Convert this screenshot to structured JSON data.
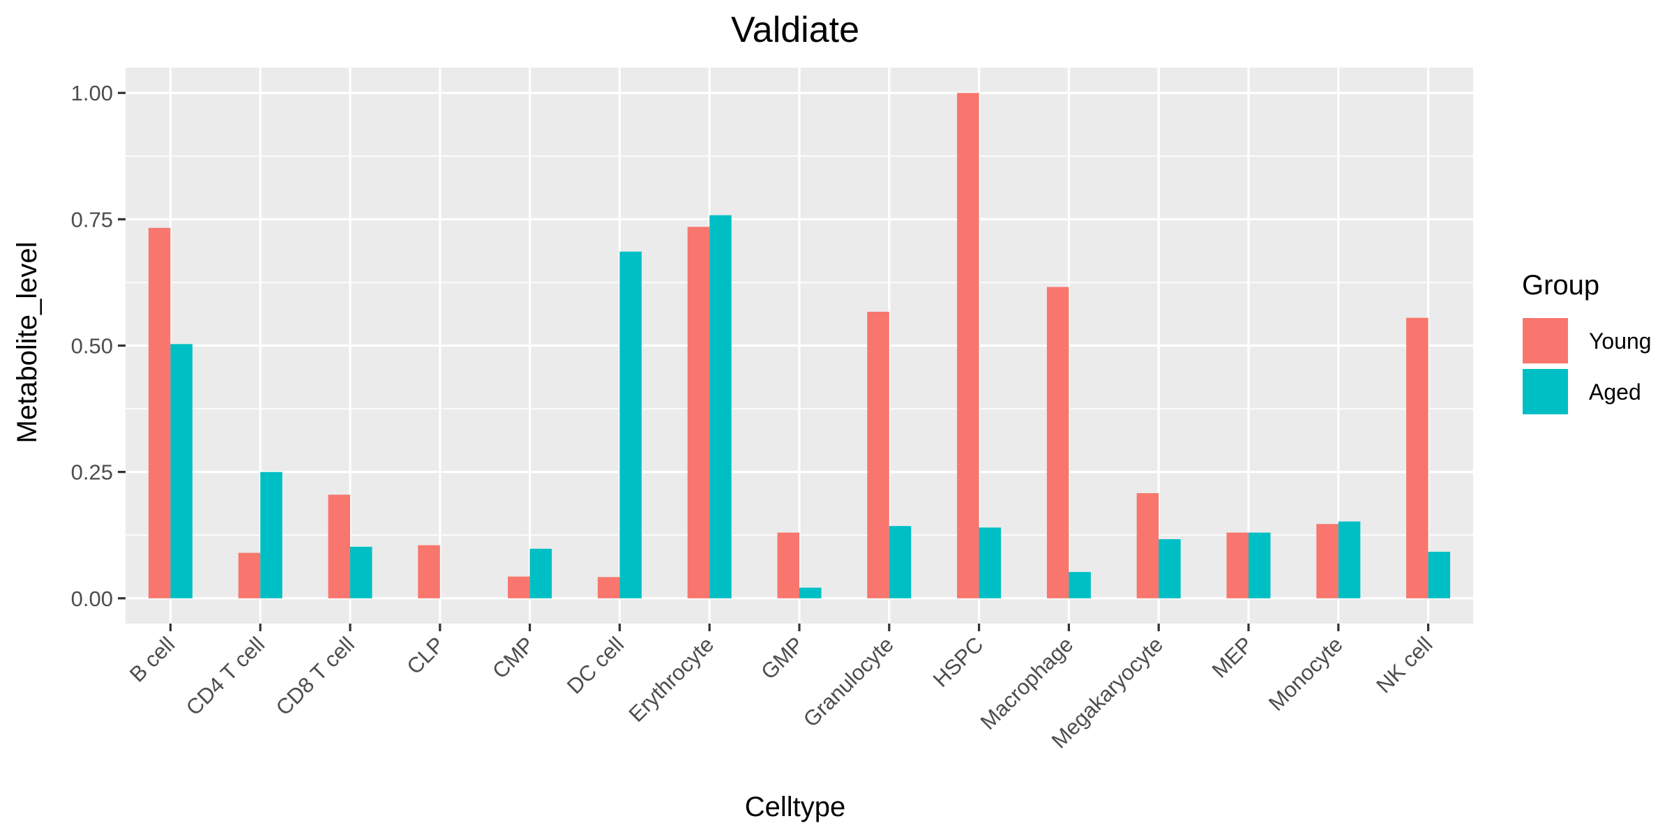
{
  "chart_data": {
    "type": "bar",
    "title": "Valdiate",
    "xlabel": "Celltype",
    "ylabel": "Metabolite_level",
    "categories": [
      "B cell",
      "CD4 T cell",
      "CD8 T cell",
      "CLP",
      "CMP",
      "DC cell",
      "Erythrocyte",
      "GMP",
      "Granulocyte",
      "HSPC",
      "Macrophage",
      "Megakaryocyte",
      "MEP",
      "Monocyte",
      "NK cell"
    ],
    "series": [
      {
        "name": "Young",
        "color": "#F8766D",
        "values": [
          0.733,
          0.09,
          0.205,
          0.105,
          0.043,
          0.042,
          0.735,
          0.13,
          0.567,
          1.0,
          0.616,
          0.208,
          0.13,
          0.147,
          0.555
        ]
      },
      {
        "name": "Aged",
        "color": "#00BFC4",
        "values": [
          0.503,
          0.25,
          0.102,
          0.0,
          0.098,
          0.686,
          0.758,
          0.021,
          0.143,
          0.14,
          0.052,
          0.117,
          0.13,
          0.152,
          0.092
        ]
      }
    ],
    "ylim": [
      -0.05,
      1.05
    ],
    "yticks": [
      0.0,
      0.25,
      0.5,
      0.75,
      1.0
    ],
    "ytick_labels": [
      "0.00",
      "0.25",
      "0.50",
      "0.75",
      "1.00"
    ],
    "grid": true,
    "panel_background": "#EBEBEB",
    "legend": {
      "title": "Group",
      "position": "right"
    }
  }
}
